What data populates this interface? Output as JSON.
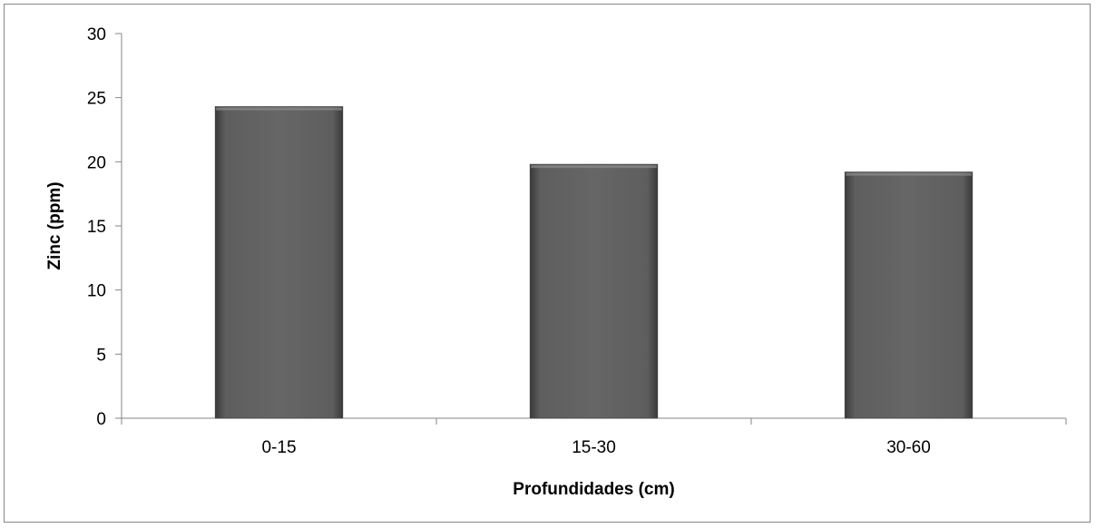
{
  "chart_data": {
    "type": "bar",
    "categories": [
      "0-15",
      "15-30",
      "30-60"
    ],
    "values": [
      24.3,
      19.8,
      19.2
    ],
    "title": "",
    "xlabel": "Profundidades (cm)",
    "ylabel": "Zinc (ppm)",
    "ylim": [
      0,
      30
    ],
    "yticks": [
      0,
      5,
      10,
      15,
      20,
      25,
      30
    ],
    "grid": false,
    "legend": "none",
    "bar_color": "#5f5f5f"
  }
}
